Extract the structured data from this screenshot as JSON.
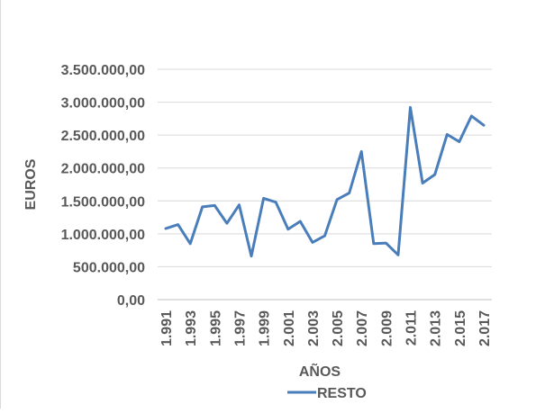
{
  "chart_data": {
    "type": "line",
    "title": "",
    "xlabel": "AÑOS",
    "ylabel": "EUROS",
    "ylim": [
      0,
      3500000
    ],
    "y_ticks": [
      0,
      500000,
      1000000,
      1500000,
      2000000,
      2500000,
      3000000,
      3500000
    ],
    "y_tick_labels": [
      "0,00",
      "500.000,00",
      "1.000.000,00",
      "1.500.000,00",
      "2.000.000,00",
      "2.500.000,00",
      "3.000.000,00",
      "3.500.000,00"
    ],
    "x_tick_labels": [
      "1.991",
      "1.993",
      "1.995",
      "1.997",
      "1.999",
      "2.001",
      "2.003",
      "2.005",
      "2.007",
      "2.009",
      "2.011",
      "2.013",
      "2.015",
      "2.017"
    ],
    "x": [
      1991,
      1992,
      1993,
      1994,
      1995,
      1996,
      1997,
      1998,
      1999,
      2000,
      2001,
      2002,
      2003,
      2004,
      2005,
      2006,
      2007,
      2008,
      2009,
      2010,
      2011,
      2012,
      2013,
      2014,
      2015,
      2016,
      2017
    ],
    "grid": true,
    "legend_position": "bottom",
    "series": [
      {
        "name": "RESTO",
        "color": "#4a7ebb",
        "values": [
          1080000,
          1140000,
          850000,
          1410000,
          1430000,
          1160000,
          1440000,
          660000,
          1540000,
          1480000,
          1070000,
          1190000,
          870000,
          970000,
          1520000,
          1620000,
          2250000,
          850000,
          860000,
          680000,
          2920000,
          1770000,
          1900000,
          2510000,
          2400000,
          2790000,
          2650000
        ]
      }
    ]
  }
}
